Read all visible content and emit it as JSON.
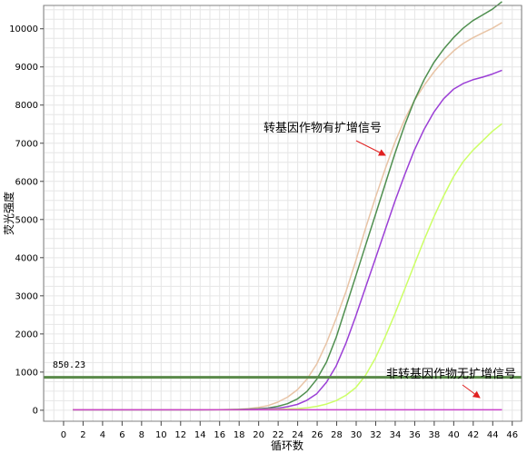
{
  "chart_data": {
    "type": "line",
    "xlabel": "循环数",
    "ylabel": "荧光强度",
    "xlim": [
      -2,
      47
    ],
    "ylim": [
      -300,
      10600
    ],
    "x_ticks": [
      0,
      2,
      4,
      6,
      8,
      10,
      12,
      14,
      16,
      18,
      20,
      22,
      24,
      26,
      28,
      30,
      32,
      34,
      36,
      38,
      40,
      42,
      44,
      46
    ],
    "y_ticks": [
      0,
      1000,
      2000,
      3000,
      4000,
      5000,
      6000,
      7000,
      8000,
      9000,
      10000
    ],
    "grid": true,
    "threshold": {
      "value": 850.23,
      "label": "850.23",
      "color": "#5a8a4a"
    },
    "series": [
      {
        "color": "#e8c4a6",
        "x": [
          1,
          6,
          10,
          14,
          16,
          18,
          19,
          20,
          21,
          22,
          23,
          24,
          25,
          26,
          27,
          28,
          29,
          30,
          31,
          32,
          33,
          34,
          35,
          36,
          37,
          38,
          39,
          40,
          41,
          42,
          43,
          44,
          45
        ],
        "values": [
          0,
          0,
          0,
          0,
          5,
          15,
          30,
          60,
          110,
          200,
          330,
          520,
          800,
          1200,
          1750,
          2400,
          3100,
          3900,
          4750,
          5550,
          6300,
          7000,
          7600,
          8100,
          8500,
          8850,
          9150,
          9400,
          9600,
          9750,
          9880,
          10000,
          10150
        ]
      },
      {
        "color": "#4f8f4f",
        "x": [
          1,
          6,
          10,
          14,
          16,
          18,
          20,
          21,
          22,
          23,
          24,
          25,
          26,
          27,
          28,
          29,
          30,
          31,
          32,
          33,
          34,
          35,
          36,
          37,
          38,
          39,
          40,
          41,
          42,
          43,
          44,
          45
        ],
        "values": [
          0,
          0,
          0,
          0,
          3,
          10,
          25,
          45,
          90,
          160,
          280,
          480,
          800,
          1250,
          1900,
          2700,
          3500,
          4300,
          5100,
          5900,
          6700,
          7450,
          8100,
          8650,
          9100,
          9450,
          9750,
          10000,
          10200,
          10350,
          10500,
          10700
        ]
      },
      {
        "color": "#9b3fd6",
        "x": [
          1,
          6,
          10,
          14,
          16,
          18,
          20,
          21,
          22,
          23,
          24,
          25,
          26,
          27,
          28,
          29,
          30,
          31,
          32,
          33,
          34,
          35,
          36,
          37,
          38,
          39,
          40,
          41,
          42,
          43,
          44,
          45
        ],
        "values": [
          0,
          0,
          0,
          0,
          2,
          5,
          15,
          25,
          40,
          80,
          140,
          250,
          420,
          720,
          1150,
          1750,
          2450,
          3200,
          3950,
          4700,
          5450,
          6150,
          6800,
          7350,
          7800,
          8150,
          8400,
          8550,
          8650,
          8720,
          8800,
          8900
        ]
      },
      {
        "color": "#ccff66",
        "x": [
          1,
          6,
          10,
          14,
          16,
          18,
          20,
          22,
          24,
          25,
          26,
          27,
          28,
          29,
          30,
          31,
          32,
          33,
          34,
          35,
          36,
          37,
          38,
          39,
          40,
          41,
          42,
          43,
          44,
          45
        ],
        "values": [
          0,
          0,
          0,
          0,
          0,
          0,
          5,
          15,
          30,
          50,
          90,
          150,
          240,
          380,
          580,
          900,
          1350,
          1900,
          2500,
          3150,
          3800,
          4450,
          5050,
          5600,
          6100,
          6500,
          6800,
          7050,
          7300,
          7500
        ]
      },
      {
        "color": "#cc44cc",
        "x": [
          1,
          6,
          10,
          14,
          18,
          22,
          26,
          30,
          34,
          38,
          42,
          45
        ],
        "values": [
          0,
          0,
          0,
          0,
          0,
          0,
          0,
          0,
          0,
          0,
          0,
          0
        ]
      }
    ],
    "annotations": [
      {
        "text": "转基因作物有扩增信号",
        "arrow_color": "#e02020"
      },
      {
        "text": "非转基因作物无扩增信号",
        "arrow_color": "#e02020"
      }
    ]
  }
}
